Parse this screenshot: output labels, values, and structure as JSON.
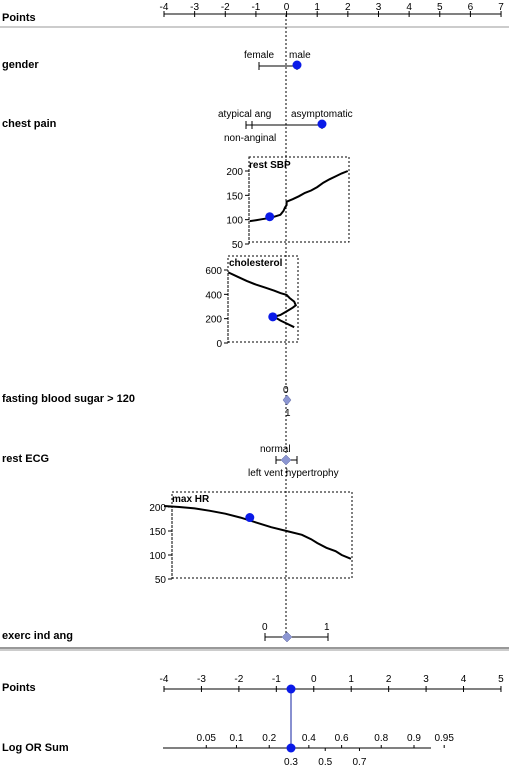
{
  "chart_data": {
    "type": "nomogram",
    "points_label": "Points",
    "points_axis": {
      "min": -4,
      "max": 7,
      "ticks": [
        -4,
        -3,
        -2,
        -1,
        0,
        1,
        2,
        3,
        4,
        5,
        6,
        7
      ]
    },
    "variables": [
      {
        "name": "gender",
        "kind": "categorical",
        "categories": [
          {
            "label": "female",
            "points": -0.7
          },
          {
            "label": "male",
            "points": 0.4
          }
        ],
        "selected": "male"
      },
      {
        "name": "chest pain",
        "kind": "categorical",
        "categories": [
          {
            "label": "non-anginal",
            "points": -1.1
          },
          {
            "label": "atypical ang",
            "points": -1.1
          },
          {
            "label": "asymptomatic",
            "points": 1.2
          }
        ],
        "selected": "asymptomatic"
      },
      {
        "name": "rest SBP",
        "kind": "continuous",
        "yticks": [
          50,
          100,
          150,
          200
        ],
        "x_points": [
          -1.2,
          -1.0,
          -0.8,
          -0.6,
          -0.4,
          -0.2,
          -0.1,
          -0.05,
          0.0,
          0.0,
          0.2,
          0.4,
          0.6,
          0.8,
          1.0,
          1.2,
          1.4,
          1.6,
          1.8,
          2.0
        ],
        "y_values": [
          97,
          99,
          101,
          103,
          106,
          110,
          118,
          125,
          130,
          137,
          142,
          148,
          155,
          160,
          167,
          176,
          183,
          189,
          195,
          200
        ],
        "selected": {
          "points": -0.55,
          "value": 106
        }
      },
      {
        "name": "cholesterol",
        "kind": "continuous",
        "yticks": [
          0,
          200,
          400,
          600
        ],
        "x_points": [
          -1.9,
          -1.6,
          -1.3,
          -1.0,
          -0.7,
          -0.4,
          -0.2,
          0.0,
          0.1,
          0.25,
          0.3,
          0.2,
          0.0,
          -0.2,
          -0.4,
          -0.2,
          0.0,
          0.25
        ],
        "y_values": [
          580,
          545,
          510,
          480,
          455,
          430,
          410,
          395,
          370,
          340,
          310,
          290,
          260,
          230,
          215,
          185,
          160,
          130
        ],
        "selected": {
          "points": -0.45,
          "value": 215
        }
      },
      {
        "name": "fasting blood sugar > 120",
        "kind": "categorical",
        "categories": [
          {
            "label": "0",
            "points": 0.0
          },
          {
            "label": "1",
            "points": 0.0
          }
        ],
        "selected": "0"
      },
      {
        "name": "rest ECG",
        "kind": "categorical",
        "categories": [
          {
            "label": "normal",
            "points": -0.4
          },
          {
            "label": "left vent hypertrophy",
            "points": 0.35
          }
        ],
        "selected": "normal"
      },
      {
        "name": "max HR",
        "kind": "continuous",
        "yticks": [
          50,
          100,
          150,
          200
        ],
        "x_points": [
          -4.0,
          -3.5,
          -3.0,
          -2.5,
          -2.0,
          -1.5,
          -1.0,
          -0.5,
          0.0,
          0.5,
          0.8,
          1.0,
          1.3,
          1.6,
          1.8,
          2.1
        ],
        "y_values": [
          202,
          200,
          197,
          192,
          186,
          178,
          168,
          158,
          150,
          142,
          133,
          125,
          115,
          108,
          100,
          92
        ],
        "selected": {
          "points": -1.2,
          "value": 178
        }
      },
      {
        "name": "exerc ind ang",
        "kind": "categorical",
        "categories": [
          {
            "label": "0",
            "points": -0.7
          },
          {
            "label": "1",
            "points": 1.3
          }
        ],
        "selected": "0"
      }
    ],
    "bottom_points_axis": {
      "label": "Points",
      "min": -4,
      "max": 5,
      "ticks": [
        -4,
        -3,
        -2,
        -1,
        0,
        1,
        2,
        3,
        4,
        5
      ],
      "selected": -0.6
    },
    "log_or_sum": {
      "label": "Log OR Sum",
      "upper_ticks": [
        "0.05",
        "0.1",
        "0.2",
        "0.4",
        "0.6",
        "0.8",
        "0.9",
        "0.95"
      ],
      "lower_ticks": [
        "0.3",
        "0.5",
        "0.7"
      ],
      "selected": "0.3"
    }
  }
}
